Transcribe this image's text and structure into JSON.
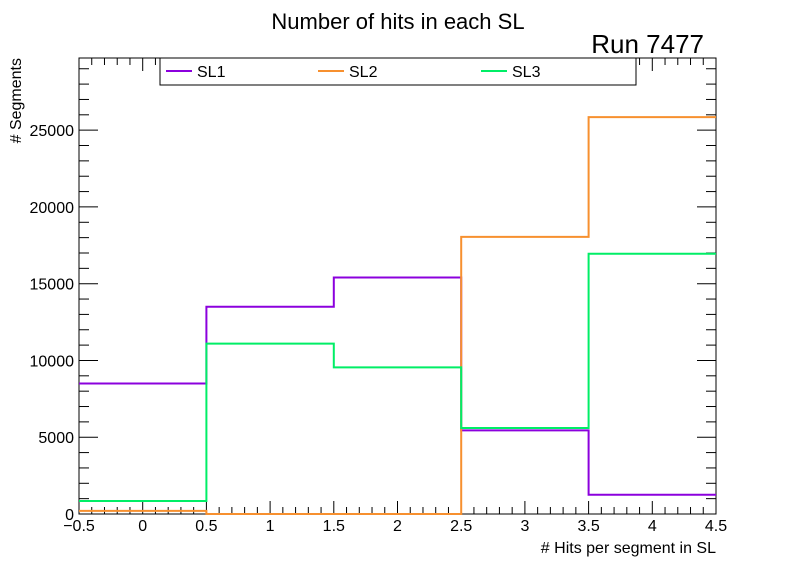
{
  "chart_data": {
    "type": "histogram",
    "title": "Number of hits in each SL",
    "run_label": "Run 7477",
    "xlabel": "# Hits per segment in SL",
    "ylabel": "# Segments",
    "xlim": [
      -0.5,
      4.5
    ],
    "ylim": [
      0,
      29700
    ],
    "bin_edges": [
      -0.5,
      0.5,
      1.5,
      2.5,
      3.5,
      4.5
    ],
    "x_ticks": [
      "−0.5",
      "0",
      "0.5",
      "1",
      "1.5",
      "2",
      "2.5",
      "3",
      "3.5",
      "4",
      "4.5"
    ],
    "x_tick_values": [
      -0.5,
      0,
      0.5,
      1,
      1.5,
      2,
      2.5,
      3,
      3.5,
      4,
      4.5
    ],
    "y_ticks": [
      "0",
      "5000",
      "10000",
      "15000",
      "20000",
      "25000"
    ],
    "y_tick_values": [
      0,
      5000,
      10000,
      15000,
      20000,
      25000
    ],
    "series": [
      {
        "name": "SL1",
        "color": "#8b00dd",
        "values": [
          8500,
          13500,
          15400,
          5450,
          1250
        ]
      },
      {
        "name": "SL2",
        "color": "#f7902f",
        "values": [
          200,
          0,
          0,
          18050,
          25850
        ]
      },
      {
        "name": "SL3",
        "color": "#00ee66",
        "values": [
          850,
          11100,
          9550,
          5600,
          16950
        ]
      }
    ],
    "legend_position": "top"
  }
}
